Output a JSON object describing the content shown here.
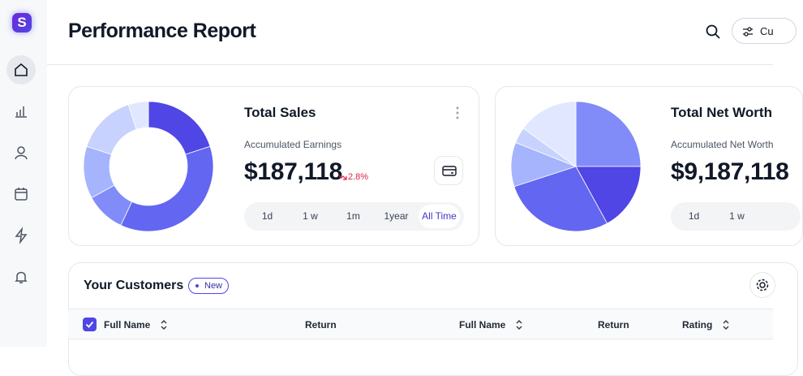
{
  "sidebar": {
    "logo": "S"
  },
  "header": {
    "title": "Performance Report",
    "button": "Cu"
  },
  "cards": [
    {
      "title": "Total Sales",
      "subtitle": "Accumulated Earnings",
      "value": "$187,118",
      "change": "2.8%",
      "periods": [
        "1d",
        "1 w",
        "1m",
        "1year",
        "All Time"
      ],
      "active_period": 4,
      "chart": {
        "type": "donut",
        "values": [
          20,
          37,
          10,
          13,
          15,
          5
        ],
        "colors": [
          "#4f46e5",
          "#6366f1",
          "#818cf8",
          "#a5b4fc",
          "#c7d2fe",
          "#e0e7ff"
        ]
      }
    },
    {
      "title": "Total Net Worth",
      "subtitle": "Accumulated Net Worth",
      "value": "$9,187,118",
      "periods": [
        "1d",
        "1 w"
      ],
      "chart": {
        "type": "pie",
        "values": [
          25,
          17,
          28,
          11,
          4,
          15
        ],
        "colors": [
          "#818cf8",
          "#4f46e5",
          "#6366f1",
          "#a5b4fc",
          "#c7d2fe",
          "#e0e7ff"
        ]
      }
    }
  ],
  "customers": {
    "title": "Your Customers",
    "badge": "New",
    "columns": [
      "Full Name",
      "Return",
      "Full Name",
      "Return",
      "Rating"
    ]
  }
}
